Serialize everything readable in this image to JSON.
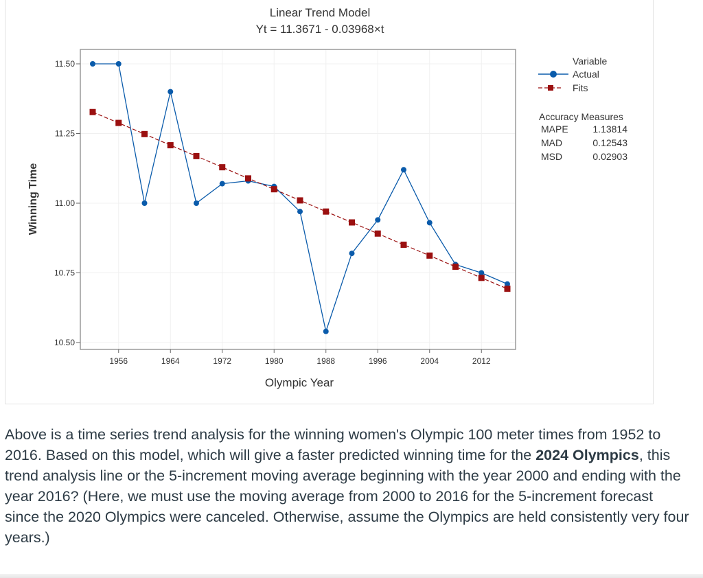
{
  "chart_data": {
    "type": "line",
    "title": "Linear Trend Model",
    "subtitle": "Yt = 11.3671 - 0.03968×t",
    "xlabel": "Olympic Year",
    "ylabel": "Winning Time",
    "xlim": [
      1952,
      2016
    ],
    "ylim": [
      10.5,
      11.5
    ],
    "xticks": [
      "1956",
      "1964",
      "1972",
      "1980",
      "1988",
      "1996",
      "2004",
      "2012"
    ],
    "yticks": [
      "11.50",
      "11.25",
      "11.00",
      "10.75",
      "10.50"
    ],
    "grid": true,
    "legend_placement": "top-right",
    "legend_title": "Variable",
    "x": [
      1952,
      1956,
      1960,
      1964,
      1968,
      1972,
      1976,
      1980,
      1984,
      1988,
      1992,
      1996,
      2000,
      2004,
      2008,
      2012,
      2016
    ],
    "series": [
      {
        "name": "Actual",
        "color": "#0a5bab",
        "marker": "circle",
        "line": "solid",
        "values": [
          11.5,
          11.5,
          11.0,
          11.4,
          11.0,
          11.07,
          11.08,
          11.06,
          10.97,
          10.54,
          10.82,
          10.94,
          11.12,
          10.93,
          10.78,
          10.75,
          10.71
        ]
      },
      {
        "name": "Fits",
        "color": "#9b1010",
        "marker": "square",
        "line": "dashed",
        "values": [
          11.327,
          11.288,
          11.248,
          11.208,
          11.169,
          11.129,
          11.089,
          11.05,
          11.01,
          10.97,
          10.931,
          10.891,
          10.851,
          10.812,
          10.772,
          10.732,
          10.693
        ]
      }
    ],
    "accuracy": {
      "title": "Accuracy Measures",
      "rows": [
        {
          "label": "MAPE",
          "value": "1.13814"
        },
        {
          "label": "MAD",
          "value": "0.12543"
        },
        {
          "label": "MSD",
          "value": "0.02903"
        }
      ]
    }
  },
  "question": {
    "part1": "Above is a time series trend analysis for the winning women's Olympic 100 meter times from 1952 to 2016. Based on this model, which will give a faster predicted winning time for the ",
    "bold": "2024 Olympics",
    "part2": ", this trend analysis line or the 5-increment moving average beginning with the year 2000 and ending with the year 2016? (Here, we must use the moving average from 2000 to 2016 for the 5-increment forecast since the 2020 Olympics were canceled. Otherwise, assume the Olympics are held consistently very four years.)"
  }
}
